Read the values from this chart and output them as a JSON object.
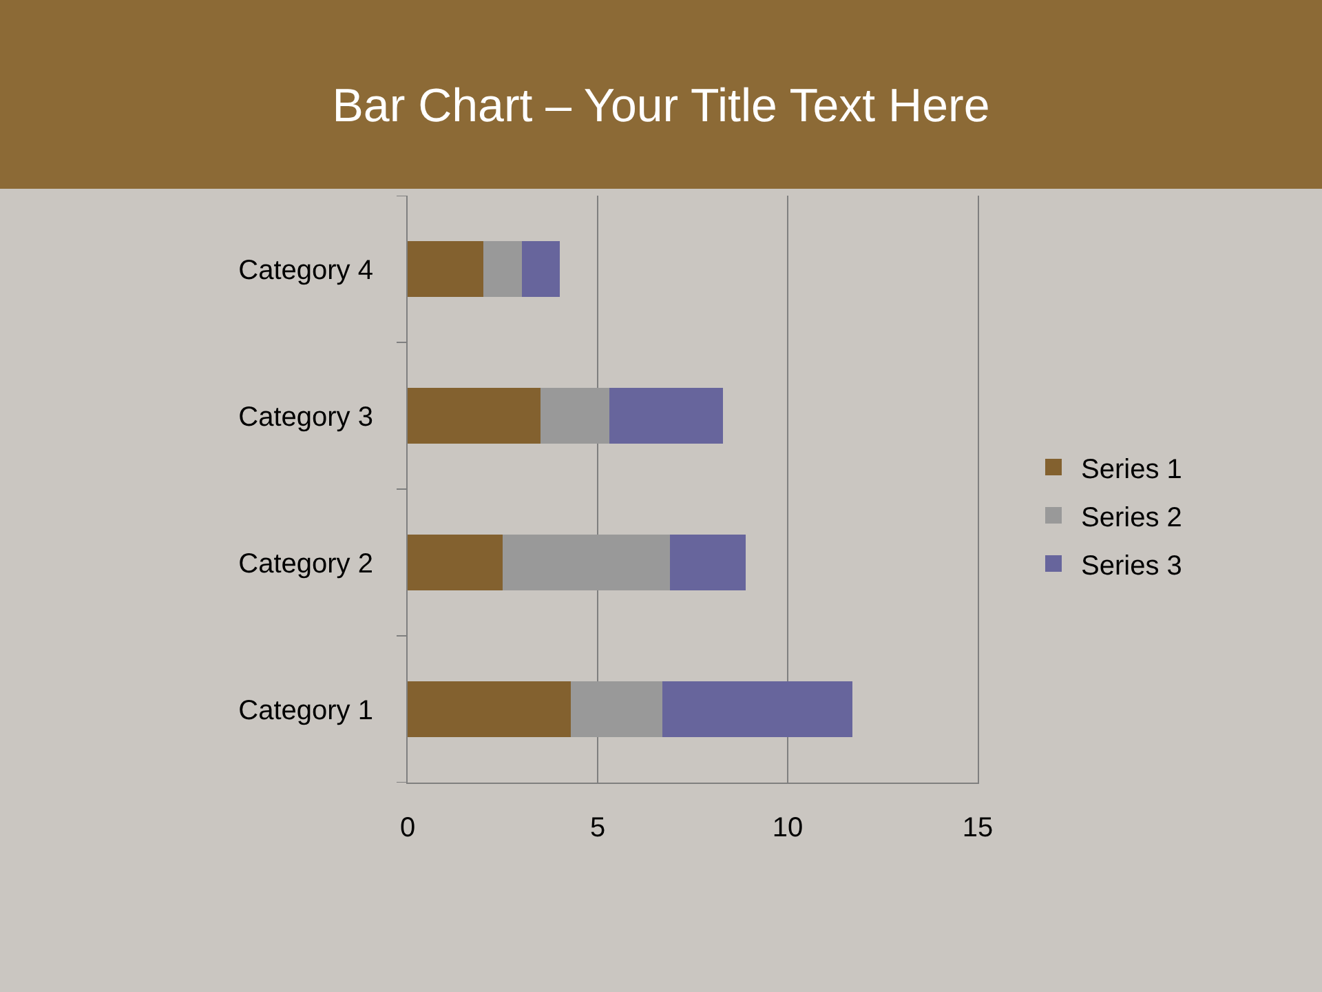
{
  "chart_data": {
    "type": "bar",
    "orientation": "horizontal",
    "stacked": true,
    "title": "Bar Chart – Your Title Text Here",
    "categories": [
      "Category 4",
      "Category 3",
      "Category 2",
      "Category 1"
    ],
    "series": [
      {
        "name": "Series 1",
        "color": "#83612f",
        "values": [
          2,
          3.5,
          2.5,
          4.3
        ]
      },
      {
        "name": "Series 2",
        "color": "#999999",
        "values": [
          1,
          1.8,
          4.4,
          2.4
        ]
      },
      {
        "name": "Series 3",
        "color": "#67659c",
        "values": [
          1,
          3,
          2,
          5
        ]
      }
    ],
    "xlim": [
      0,
      15
    ],
    "xticks": [
      0,
      5,
      10,
      15
    ],
    "grid": "x",
    "legend": "right"
  }
}
